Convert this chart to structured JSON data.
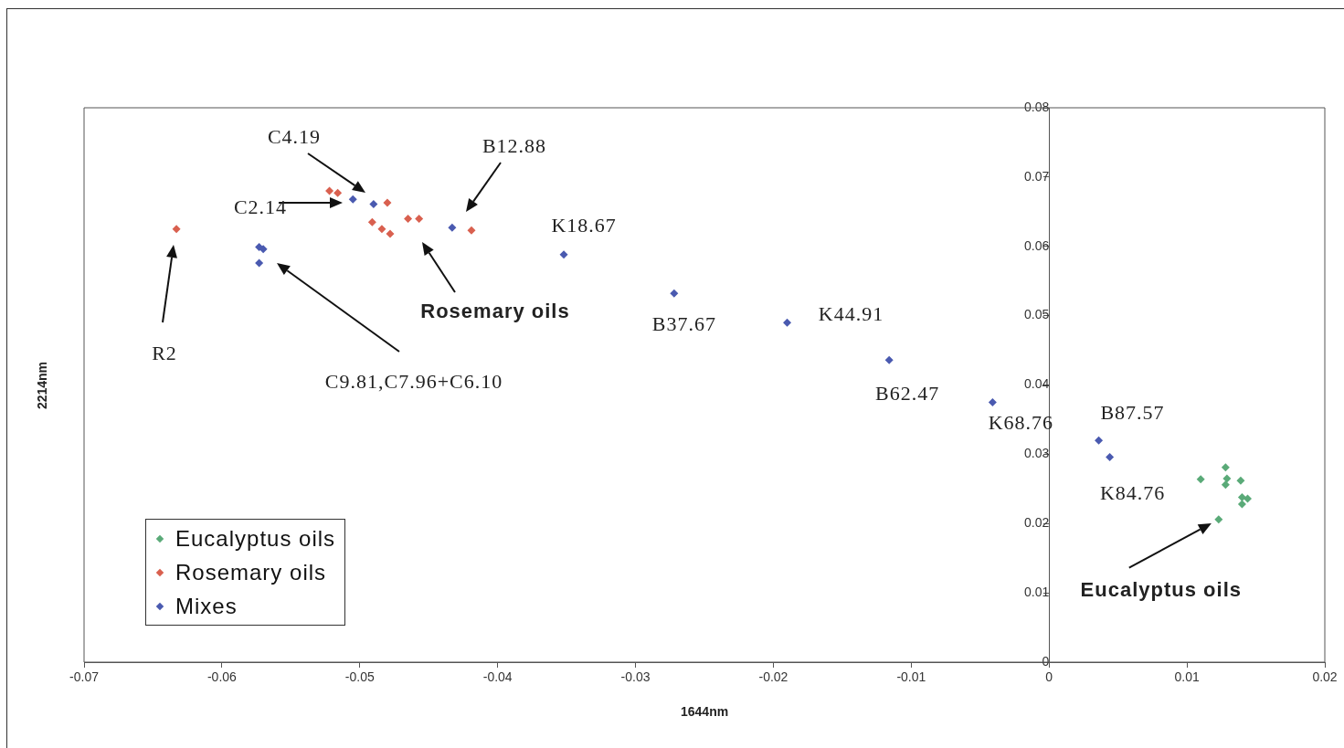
{
  "chart_data": {
    "type": "scatter",
    "xlabel": "1644nm",
    "ylabel": "2214nm",
    "xlim": [
      -0.07,
      0.02
    ],
    "ylim": [
      0,
      0.08
    ],
    "xticks": [
      -0.07,
      -0.06,
      -0.05,
      -0.04,
      -0.03,
      -0.02,
      -0.01,
      0,
      0.01,
      0.02
    ],
    "yticks": [
      0,
      0.01,
      0.02,
      0.03,
      0.04,
      0.05,
      0.06,
      0.07,
      0.08
    ],
    "marker": "diamond",
    "legend": "bottom left",
    "series": [
      {
        "name": "Eucalyptus oils",
        "color": "#5aaa78",
        "x": [
          0.0128,
          0.011,
          0.0129,
          0.0128,
          0.0139,
          0.014,
          0.0144,
          0.014,
          0.0123
        ],
        "values": [
          0.0281,
          0.0264,
          0.0265,
          0.0256,
          0.0262,
          0.0238,
          0.0236,
          0.0228,
          0.0206
        ]
      },
      {
        "name": "Rosemary oils",
        "color": "#d9604f",
        "x": [
          -0.0522,
          -0.0516,
          -0.048,
          -0.0491,
          -0.0484,
          -0.0478,
          -0.0465,
          -0.0457,
          -0.0419,
          -0.0633
        ],
        "values": [
          0.068,
          0.0677,
          0.0663,
          0.0635,
          0.0625,
          0.0618,
          0.064,
          0.064,
          0.0623,
          0.0625
        ]
      },
      {
        "name": "Mixes",
        "color": "#4a5ab0",
        "x": [
          -0.0505,
          -0.049,
          -0.0433,
          -0.0573,
          -0.057,
          -0.0573,
          -0.0352,
          -0.0272,
          -0.019,
          -0.0116,
          -0.0041,
          0.0036,
          0.0044
        ],
        "values": [
          0.0668,
          0.0661,
          0.0627,
          0.0599,
          0.0596,
          0.0576,
          0.0588,
          0.0532,
          0.049,
          0.0436,
          0.0375,
          0.032,
          0.0296
        ]
      }
    ],
    "annotations": [
      "C4.19",
      "B12.88",
      "C2.14",
      {
        "text": "K18.67",
        "x": -0.0352,
        "y": 0.0588
      },
      "Rosemary oils",
      "R2",
      "C9.81,C7.96+C6.10",
      {
        "text": "B37.67",
        "x": -0.0272,
        "y": 0.0532
      },
      {
        "text": "K44.91",
        "x": -0.019,
        "y": 0.049
      },
      {
        "text": "B62.47",
        "x": -0.0116,
        "y": 0.0436
      },
      {
        "text": "K68.76",
        "x": -0.0041,
        "y": 0.0375
      },
      {
        "text": "B87.57",
        "x": 0.0036,
        "y": 0.032
      },
      {
        "text": "K84.76",
        "x": 0.0044,
        "y": 0.0296
      },
      {
        "text": "Eucalyptus oils",
        "x": 0.0123,
        "y": 0.0206
      }
    ]
  }
}
